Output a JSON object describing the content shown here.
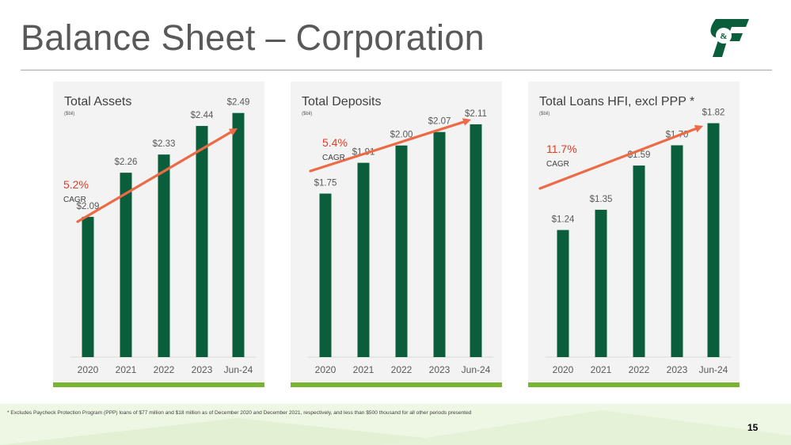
{
  "slide": {
    "title": "Balance Sheet – Corporation",
    "footnote": "* Excludes Paycheck Protection Program (PPP) loans of $77 million and $18 million as of December 2020 and December 2021, respectively, and less than $500 thousand for all other periods presented",
    "page_number": "15",
    "logo_text": "C&F"
  },
  "colors": {
    "bar": "#0b5e3c",
    "trend_arrow": "#ed6a46",
    "cagr_value": "#e23b26",
    "panel_bg": "#f3f3f3",
    "panel_accent": "#79b530",
    "logo": "#0b5e3c"
  },
  "chart_data": [
    {
      "type": "bar",
      "title": "Total Assets",
      "subtitle": "($bil)",
      "categories": [
        "2020",
        "2021",
        "2022",
        "2023",
        "Jun-24"
      ],
      "values": [
        2.09,
        2.26,
        2.33,
        2.44,
        2.49
      ],
      "value_labels": [
        "$2.09",
        "$2.26",
        "$2.33",
        "$2.44",
        "$2.49"
      ],
      "cagr_value": "5.2%",
      "cagr_label": "CAGR",
      "ylim": [
        1.55,
        2.55
      ],
      "grid": false
    },
    {
      "type": "bar",
      "title": "Total Deposits",
      "subtitle": "($bil)",
      "categories": [
        "2020",
        "2021",
        "2022",
        "2023",
        "Jun-24"
      ],
      "values": [
        1.75,
        1.91,
        2.0,
        2.07,
        2.11
      ],
      "value_labels": [
        "$1.75",
        "$1.91",
        "$2.00",
        "$2.07",
        "$2.11"
      ],
      "cagr_value": "5.4%",
      "cagr_label": "CAGR",
      "ylim": [
        0.9,
        2.25
      ],
      "grid": false
    },
    {
      "type": "bar",
      "title": "Total Loans HFI, excl PPP *",
      "subtitle": "($bil)",
      "categories": [
        "2020",
        "2021",
        "2022",
        "2023",
        "Jun-24"
      ],
      "values": [
        1.24,
        1.35,
        1.59,
        1.7,
        1.82
      ],
      "value_labels": [
        "$1.24",
        "$1.35",
        "$1.59",
        "$1.70",
        "$1.82"
      ],
      "cagr_value": "11.7%",
      "cagr_label": "CAGR",
      "ylim": [
        0.55,
        1.96
      ],
      "grid": false
    }
  ]
}
